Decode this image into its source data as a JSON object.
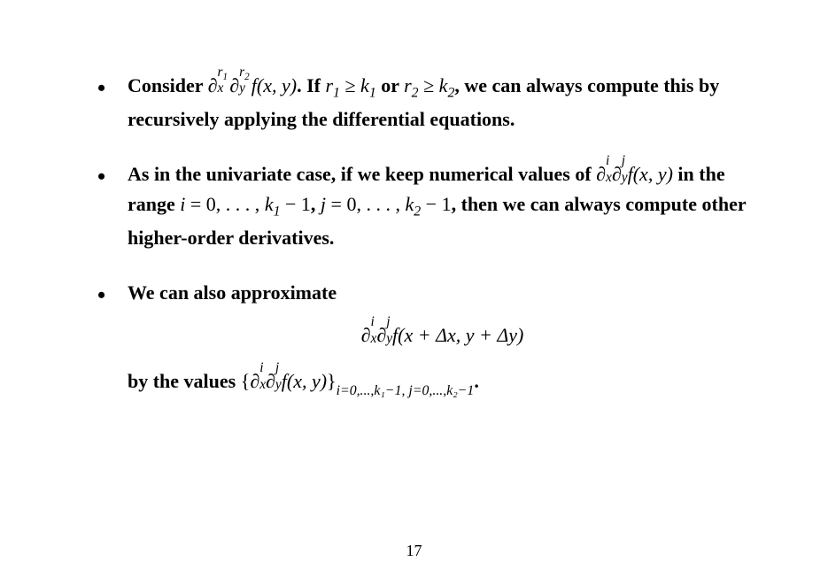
{
  "pageNumber": "17",
  "bullets": [
    {
      "prefix": "Consider ",
      "expr1": {
        "partial": true,
        "base": "x",
        "sup": "r",
        "supSub": "1"
      },
      "expr2": {
        "partial": true,
        "base": "y",
        "sup": "r",
        "supSub": "2"
      },
      "func": "f(x, y)",
      "mid": ". If ",
      "cond1": {
        "v": "r",
        "vSub": "1",
        "rel": " ≥ ",
        "w": "k",
        "wSub": "1"
      },
      "or": " or ",
      "cond2": {
        "v": "r",
        "vSub": "2",
        "rel": " ≥ ",
        "w": "k",
        "wSub": "2"
      },
      "tail": ", we can always compute this by recursively applying the differential equations."
    },
    {
      "prefix": "As in the univariate case, if we keep numerical values of ",
      "expr1": {
        "partial": true,
        "base": "x",
        "sup": "i"
      },
      "expr2": {
        "partial": true,
        "base": "y",
        "sup": "j"
      },
      "func": "f(x, y)",
      "mid": " in the range ",
      "range1": {
        "v": "i",
        "eq": " = 0, . . . , ",
        "k": "k",
        "kSub": "1",
        "minus": " − 1"
      },
      "comma": ", ",
      "range2": {
        "v": "j",
        "eq": " = 0, . . . , ",
        "k": "k",
        "kSub": "2",
        "minus": " − 1"
      },
      "tail": ", then we can always compute other higher-order derivatives."
    },
    {
      "prefix": "We can also approximate",
      "display": {
        "expr1": {
          "partial": true,
          "base": "x",
          "sup": "i"
        },
        "expr2": {
          "partial": true,
          "base": "y",
          "sup": "j"
        },
        "func": "f(x + Δx, y + Δy)"
      },
      "byText": "by the values ",
      "set": {
        "open": "{",
        "expr1": {
          "partial": true,
          "base": "x",
          "sup": "i"
        },
        "expr2": {
          "partial": true,
          "base": "y",
          "sup": "j"
        },
        "func": "f(x, y)",
        "close": "}",
        "sub": "i=0,...,k₁−1, j=0,...,k₂−1"
      },
      "period": "."
    }
  ],
  "styling": {
    "fontFamily": "Times New Roman",
    "bodyFontSize": 22,
    "bodyFontWeight": "bold",
    "textColor": "#000000",
    "backgroundColor": "#ffffff",
    "pageWidth": 935,
    "pageHeight": 661,
    "lineHeight": 1.55,
    "bulletChar": "•",
    "bulletIndent": 34
  }
}
